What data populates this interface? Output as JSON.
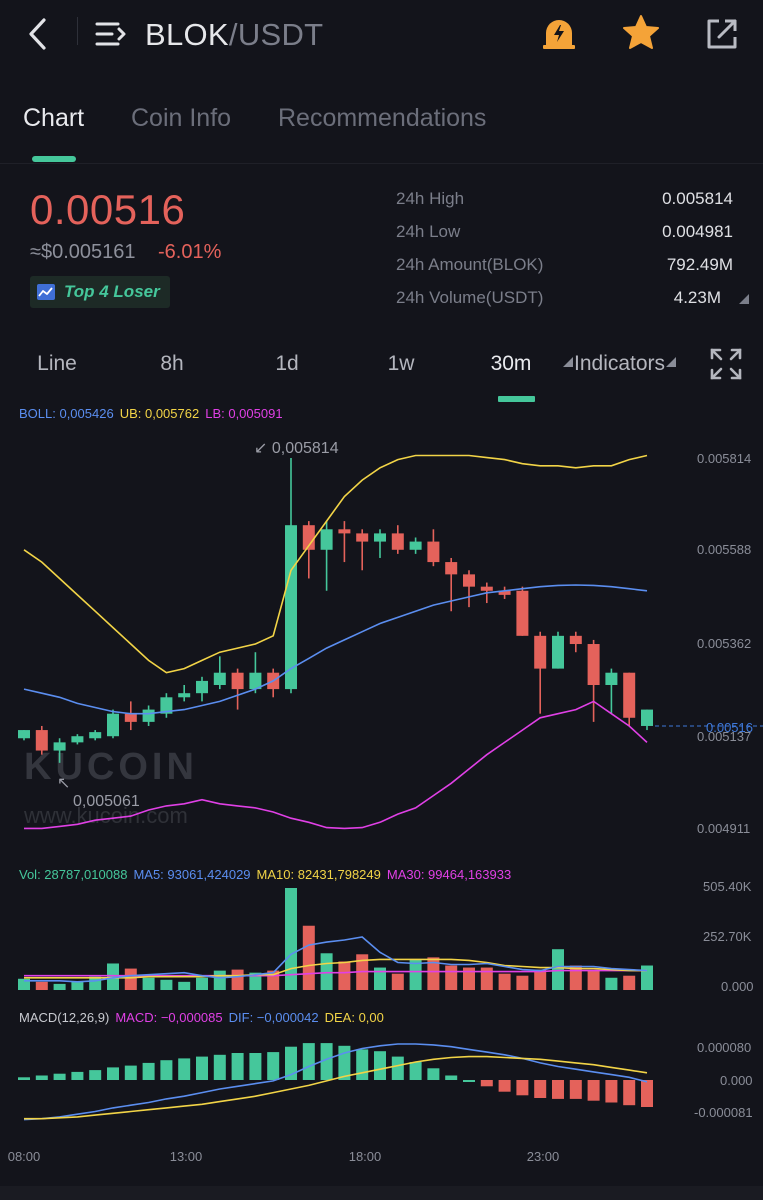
{
  "header": {
    "pair_base": "BLOK",
    "pair_quote": "/USDT",
    "icons": [
      "back-icon",
      "menu-icon",
      "alert-icon",
      "star-icon",
      "share-icon"
    ]
  },
  "tabs": [
    {
      "label": "Chart",
      "active": true
    },
    {
      "label": "Coin Info",
      "active": false
    },
    {
      "label": "Recommendations",
      "active": false
    }
  ],
  "price": {
    "last": "0.00516",
    "fiat": "≈$0.005161",
    "change": "-6.01%",
    "badge": "Top 4 Loser"
  },
  "stats": [
    {
      "label": "24h High",
      "value": "0.005814"
    },
    {
      "label": "24h Low",
      "value": "0.004981"
    },
    {
      "label": "24h Amount(BLOK)",
      "value": "792.49M"
    },
    {
      "label": "24h Volume(USDT)",
      "value": "4.23M"
    }
  ],
  "intervals": [
    {
      "label": "Line",
      "active": false
    },
    {
      "label": "8h",
      "active": false
    },
    {
      "label": "1d",
      "active": false
    },
    {
      "label": "1w",
      "active": false
    },
    {
      "label": "30m",
      "active": true
    }
  ],
  "indicators_label": "Indicators",
  "colors": {
    "up": "#45c79b",
    "down": "#e4625b",
    "boll": "#5b8ef0",
    "ub": "#f2d447",
    "lb": "#e040e6",
    "accent": "#45c79b"
  },
  "chart_data": {
    "type": "candlestick",
    "boll_legend": {
      "boll": "BOLL: 0,005426",
      "ub": "UB: 0,005762",
      "lb": "LB: 0,005091"
    },
    "vol_legend": {
      "vol": "Vol: 28787,010088",
      "ma5": "MA5: 93061,424029",
      "ma10": "MA10: 82431,798249",
      "ma30": "MA30: 99464,163933"
    },
    "macd_legend": {
      "macd": "MACD(12,26,9)",
      "macd_val": "MACD: −0,000085",
      "dif": "DIF: −0,000042",
      "dea": "DEA: 0,00"
    },
    "price_axis": [
      "0.005814",
      "0.005588",
      "0.005362",
      "0.005137",
      "0.004911"
    ],
    "vol_axis": [
      "505.40K",
      "252.70K",
      "0.000"
    ],
    "macd_axis": [
      "0.000080",
      "0.000",
      "-0.000081"
    ],
    "time_axis": [
      "08:00",
      "13:00",
      "18:00",
      "23:00"
    ],
    "high_label": "0,005814",
    "low_label": "0,005061",
    "last_price_label": "0.00516",
    "watermark": "KUCOIN",
    "watermark_url": "www.kucoin.com",
    "candles": [
      [
        0.00513,
        0.00515,
        0.00515,
        0.005125
      ],
      [
        0.00515,
        0.0051,
        0.00516,
        0.00509
      ],
      [
        0.0051,
        0.00512,
        0.00513,
        0.00507
      ],
      [
        0.00512,
        0.005135,
        0.00514,
        0.005115
      ],
      [
        0.00513,
        0.005145,
        0.00515,
        0.005125
      ],
      [
        0.005135,
        0.00519,
        0.0052,
        0.00513
      ],
      [
        0.00519,
        0.00517,
        0.00522,
        0.00515
      ],
      [
        0.00517,
        0.0052,
        0.00521,
        0.00516
      ],
      [
        0.00519,
        0.00523,
        0.00524,
        0.00518
      ],
      [
        0.00523,
        0.00524,
        0.00526,
        0.00522
      ],
      [
        0.00524,
        0.00527,
        0.00528,
        0.00522
      ],
      [
        0.00526,
        0.00529,
        0.00533,
        0.00525
      ],
      [
        0.00529,
        0.00525,
        0.0053,
        0.0052
      ],
      [
        0.00525,
        0.00529,
        0.00534,
        0.00524
      ],
      [
        0.00529,
        0.00525,
        0.0053,
        0.00523
      ],
      [
        0.00525,
        0.00565,
        0.005814,
        0.00524
      ],
      [
        0.00565,
        0.00559,
        0.00566,
        0.00552
      ],
      [
        0.00559,
        0.00564,
        0.00566,
        0.00549
      ],
      [
        0.00564,
        0.00563,
        0.00566,
        0.00556
      ],
      [
        0.00563,
        0.00561,
        0.00564,
        0.00554
      ],
      [
        0.00561,
        0.00563,
        0.00564,
        0.00557
      ],
      [
        0.00563,
        0.00559,
        0.00565,
        0.00558
      ],
      [
        0.00559,
        0.00561,
        0.00562,
        0.00558
      ],
      [
        0.00561,
        0.00556,
        0.00564,
        0.00555
      ],
      [
        0.00556,
        0.00553,
        0.00557,
        0.00544
      ],
      [
        0.00553,
        0.0055,
        0.00554,
        0.00545
      ],
      [
        0.0055,
        0.00549,
        0.00551,
        0.00546
      ],
      [
        0.00549,
        0.00548,
        0.0055,
        0.00547
      ],
      [
        0.00549,
        0.00538,
        0.0055,
        0.00538
      ],
      [
        0.00538,
        0.0053,
        0.00539,
        0.00519
      ],
      [
        0.0053,
        0.00538,
        0.00539,
        0.0053
      ],
      [
        0.00538,
        0.00536,
        0.00539,
        0.00534
      ],
      [
        0.00536,
        0.00526,
        0.00537,
        0.00517
      ],
      [
        0.00526,
        0.00529,
        0.0053,
        0.00519
      ],
      [
        0.00529,
        0.00518,
        0.00529,
        0.00516
      ],
      [
        0.00516,
        0.0052,
        0.0052,
        0.00515
      ]
    ],
    "ub": [
      0.00559,
      0.00556,
      0.00552,
      0.00548,
      0.00544,
      0.0054,
      0.00536,
      0.00532,
      0.00529,
      0.0053,
      0.00532,
      0.00534,
      0.00535,
      0.00536,
      0.00538,
      0.00554,
      0.0056,
      0.00566,
      0.00572,
      0.00576,
      0.00579,
      0.00581,
      0.00582,
      0.00582,
      0.00582,
      0.00582,
      0.005815,
      0.00581,
      0.0058,
      0.005795,
      0.005795,
      0.00579,
      0.005795,
      0.005795,
      0.00581,
      0.00582
    ],
    "mid": [
      0.00525,
      0.00524,
      0.00523,
      0.005215,
      0.005205,
      0.005195,
      0.00519,
      0.00519,
      0.005195,
      0.0052,
      0.00521,
      0.00522,
      0.005235,
      0.00525,
      0.00527,
      0.0053,
      0.005325,
      0.00535,
      0.00537,
      0.00539,
      0.00541,
      0.005425,
      0.00544,
      0.005455,
      0.005465,
      0.005475,
      0.005485,
      0.00549,
      0.005495,
      0.0055,
      0.005503,
      0.005504,
      0.005503,
      0.0055,
      0.005495,
      0.00549
    ],
    "lb": [
      0.00491,
      0.00491,
      0.004915,
      0.00492,
      0.00493,
      0.004935,
      0.00494,
      0.004955,
      0.004965,
      0.00497,
      0.00498,
      0.00497,
      0.004965,
      0.00496,
      0.00495,
      0.004935,
      0.004925,
      0.004912,
      0.00491,
      0.004912,
      0.004925,
      0.004945,
      0.00496,
      0.00499,
      0.00502,
      0.005055,
      0.00509,
      0.00512,
      0.00515,
      0.00518,
      0.00519,
      0.0052,
      0.00522,
      0.00519,
      0.00516,
      0.00512
    ],
    "volume": [
      0.11,
      0.08,
      0.06,
      0.08,
      0.13,
      0.26,
      0.21,
      0.12,
      0.1,
      0.08,
      0.12,
      0.19,
      0.2,
      0.17,
      0.19,
      1.0,
      0.63,
      0.36,
      0.28,
      0.35,
      0.22,
      0.16,
      0.3,
      0.32,
      0.24,
      0.22,
      0.22,
      0.16,
      0.14,
      0.2,
      0.4,
      0.24,
      0.19,
      0.12,
      0.14,
      0.24
    ],
    "vol_ma5": [
      0.09,
      0.09,
      0.09,
      0.08,
      0.09,
      0.12,
      0.14,
      0.15,
      0.16,
      0.17,
      0.14,
      0.12,
      0.13,
      0.15,
      0.17,
      0.35,
      0.44,
      0.47,
      0.49,
      0.52,
      0.37,
      0.27,
      0.26,
      0.27,
      0.25,
      0.25,
      0.26,
      0.23,
      0.2,
      0.19,
      0.23,
      0.23,
      0.23,
      0.21,
      0.2,
      0.19
    ],
    "vol_ma10": [
      0.12,
      0.12,
      0.12,
      0.12,
      0.12,
      0.12,
      0.12,
      0.13,
      0.13,
      0.13,
      0.13,
      0.14,
      0.14,
      0.15,
      0.15,
      0.21,
      0.24,
      0.26,
      0.27,
      0.29,
      0.3,
      0.3,
      0.3,
      0.3,
      0.3,
      0.29,
      0.27,
      0.24,
      0.23,
      0.22,
      0.22,
      0.21,
      0.21,
      0.2,
      0.19,
      0.19
    ],
    "vol_ma30": [
      0.14,
      0.14,
      0.14,
      0.14,
      0.14,
      0.14,
      0.14,
      0.14,
      0.14,
      0.14,
      0.14,
      0.14,
      0.14,
      0.14,
      0.14,
      0.15,
      0.16,
      0.17,
      0.17,
      0.18,
      0.18,
      0.18,
      0.18,
      0.18,
      0.18,
      0.18,
      0.18,
      0.18,
      0.18,
      0.18,
      0.19,
      0.19,
      0.19,
      0.19,
      0.19,
      0.19
    ],
    "macd_hist": [
      0.03,
      0.05,
      0.07,
      0.09,
      0.11,
      0.14,
      0.16,
      0.19,
      0.22,
      0.24,
      0.26,
      0.28,
      0.3,
      0.3,
      0.31,
      0.37,
      0.41,
      0.41,
      0.38,
      0.34,
      0.32,
      0.26,
      0.2,
      0.13,
      0.05,
      0.0,
      -0.07,
      -0.13,
      -0.17,
      -0.2,
      -0.21,
      -0.21,
      -0.23,
      -0.25,
      -0.28,
      -0.3
    ],
    "macd_dif": [
      -0.44,
      -0.43,
      -0.41,
      -0.38,
      -0.35,
      -0.31,
      -0.28,
      -0.25,
      -0.21,
      -0.18,
      -0.14,
      -0.1,
      -0.07,
      -0.04,
      -0.01,
      0.06,
      0.15,
      0.23,
      0.3,
      0.35,
      0.38,
      0.4,
      0.4,
      0.39,
      0.37,
      0.34,
      0.31,
      0.28,
      0.24,
      0.19,
      0.15,
      0.12,
      0.09,
      0.06,
      0.03,
      -0.02
    ],
    "macd_dea": [
      -0.43,
      -0.43,
      -0.42,
      -0.41,
      -0.39,
      -0.37,
      -0.35,
      -0.33,
      -0.31,
      -0.29,
      -0.27,
      -0.24,
      -0.21,
      -0.18,
      -0.14,
      -0.1,
      -0.06,
      -0.01,
      0.04,
      0.08,
      0.12,
      0.16,
      0.2,
      0.23,
      0.25,
      0.26,
      0.26,
      0.25,
      0.24,
      0.23,
      0.21,
      0.19,
      0.17,
      0.14,
      0.11,
      0.08
    ]
  }
}
